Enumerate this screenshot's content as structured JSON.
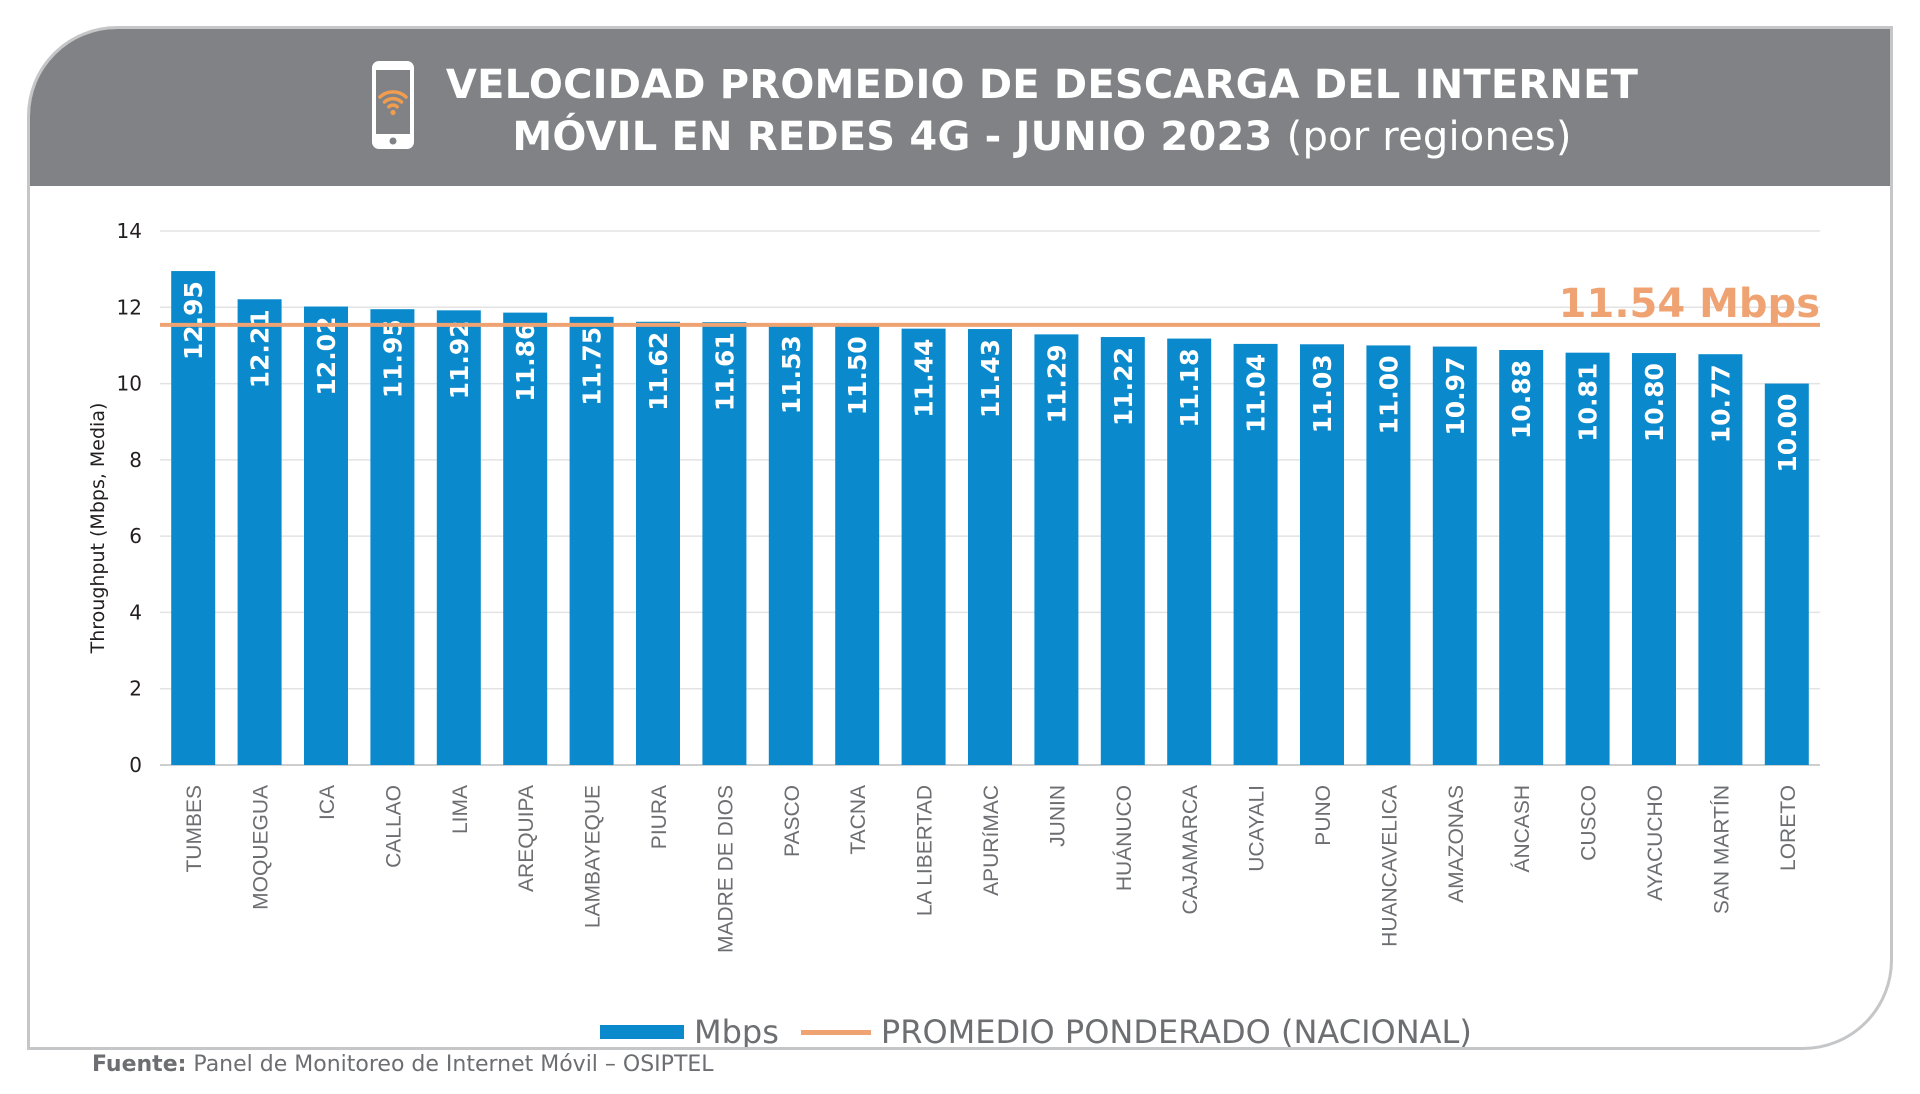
{
  "header": {
    "title_bold_line1": "VELOCIDAD PROMEDIO DE DESCARGA DEL INTERNET",
    "title_bold_line2": "MÓVIL EN REDES 4G - JUNIO 2023",
    "title_sub": "(por regiones)",
    "icon": "phone-wifi-icon"
  },
  "chart_data": {
    "type": "bar",
    "title": "VELOCIDAD PROMEDIO DE DESCARGA DEL INTERNET MÓVIL EN REDES 4G - JUNIO 2023 (por regiones)",
    "xlabel": "",
    "ylabel": "Throughput (Mbps, Media)",
    "ylim": [
      0,
      14
    ],
    "yticks": [
      0,
      2,
      4,
      6,
      8,
      10,
      12,
      14
    ],
    "grid": true,
    "categories": [
      "TUMBES",
      "MOQUEGUA",
      "ICA",
      "CALLAO",
      "LIMA",
      "AREQUIPA",
      "LAMBAYEQUE",
      "PIURA",
      "MADRE DE DIOS",
      "PASCO",
      "TACNA",
      "LA LIBERTAD",
      "APURíMAC",
      "JUNIN",
      "HUÁNUCO",
      "CAJAMARCA",
      "UCAYALI",
      "PUNO",
      "HUANCAVELICA",
      "AMAZONAS",
      "ÁNCASH",
      "CUSCO",
      "AYACUCHO",
      "SAN MARTÍN",
      "LORETO"
    ],
    "series": [
      {
        "name": "Mbps",
        "values": [
          12.95,
          12.21,
          12.02,
          11.95,
          11.92,
          11.86,
          11.75,
          11.62,
          11.61,
          11.53,
          11.5,
          11.44,
          11.43,
          11.29,
          11.22,
          11.18,
          11.04,
          11.03,
          11.0,
          10.97,
          10.88,
          10.81,
          10.8,
          10.77,
          10.0
        ],
        "value_labels": [
          "12.95",
          "12.21",
          "12.02",
          "11.95",
          "11.92",
          "11.86",
          "11.75",
          "11.62",
          "11.61",
          "11.53",
          "11.50",
          "11.44",
          "11.43",
          "11.29",
          "11.22",
          "11.18",
          "11.04",
          "11.03",
          "11.00",
          "10.97",
          "10.88",
          "10.81",
          "10.80",
          "10.77",
          "10.00"
        ],
        "color": "#0a8acd"
      }
    ],
    "reference_line": {
      "name": "PROMEDIO PONDERADO (NACIONAL)",
      "value": 11.54,
      "label": "11.54 Mbps",
      "color": "#f0a372"
    },
    "legend": [
      "Mbps",
      "PROMEDIO PONDERADO (NACIONAL)"
    ],
    "legend_position": "bottom"
  },
  "legend": {
    "bar_label": "Mbps",
    "line_label": "PROMEDIO PONDERADO (NACIONAL)"
  },
  "footer": {
    "source_label": "Fuente:",
    "source_text": "Panel de Monitoreo de Internet Móvil – OSIPTEL"
  },
  "colors": {
    "header_bg": "#808285",
    "bar": "#0a8acd",
    "average_line": "#f0a372",
    "grid": "#e3e3e3",
    "text": "#58595b"
  }
}
